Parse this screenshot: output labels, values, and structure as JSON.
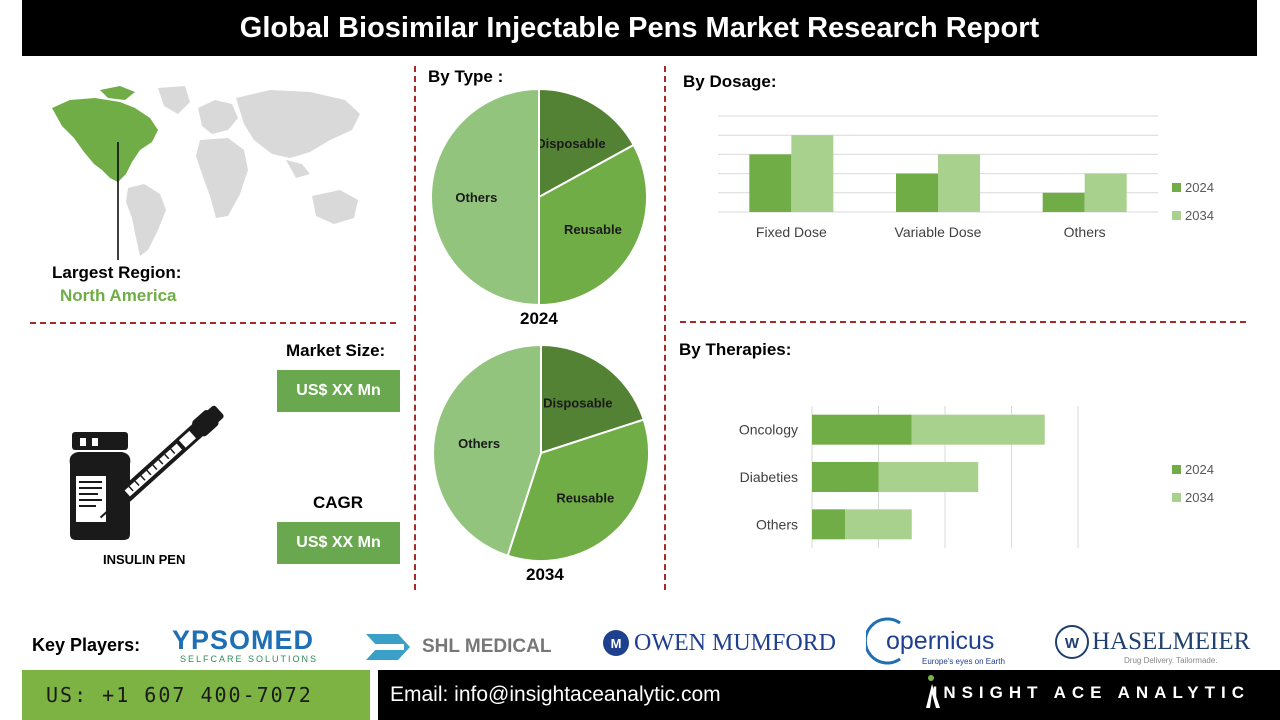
{
  "header": {
    "title": "Global Biosimilar Injectable Pens Market Research Report"
  },
  "region": {
    "label": "Largest Region:",
    "value": "North America"
  },
  "market_size": {
    "label": "Market Size:",
    "value": "US$ XX Mn"
  },
  "cagr": {
    "label": "CAGR",
    "value": "US$ XX Mn"
  },
  "product": {
    "label": "INSULIN PEN"
  },
  "sections": {
    "by_type": "By Type :",
    "by_dosage": "By Dosage:",
    "by_therapies": "By Therapies:"
  },
  "key_players": {
    "label": "Key Players:",
    "logos": [
      {
        "name": "YPSOMED",
        "tagline": "SELFCARE SOLUTIONS"
      },
      {
        "name": "SHL MEDICAL",
        "tagline": ""
      },
      {
        "name": "OWEN MUMFORD",
        "tagline": ""
      },
      {
        "name": "opernicus",
        "tagline": "Europe's eyes on Earth"
      },
      {
        "name": "HASELMEIER",
        "tagline": "Drug Delivery. Tailormade."
      }
    ]
  },
  "footer": {
    "phone": "US: +1 607 400-7072",
    "email": "Email: info@insightaceanalytic.com",
    "brand": "INSIGHT ACE ANALYTIC"
  },
  "colors": {
    "dark_green": "#548235",
    "mid_green": "#70ad47",
    "light_green": "#a9d18e",
    "pie_light": "#93c47d",
    "accent_red": "#a52a2a"
  },
  "chart_data": [
    {
      "type": "pie",
      "title": "2024",
      "slices": [
        {
          "label": "Disposable",
          "value": 17
        },
        {
          "label": "Reusable",
          "value": 33
        },
        {
          "label": "Others",
          "value": 50
        }
      ]
    },
    {
      "type": "pie",
      "title": "2034",
      "slices": [
        {
          "label": "Disposable",
          "value": 20
        },
        {
          "label": "Reusable",
          "value": 35
        },
        {
          "label": "Others",
          "value": 45
        }
      ]
    },
    {
      "type": "bar",
      "orientation": "vertical",
      "categories": [
        "Fixed Dose",
        "Variable Dose",
        "Others"
      ],
      "series": [
        {
          "name": "2024",
          "values": [
            3,
            2,
            1
          ]
        },
        {
          "name": "2034",
          "values": [
            4,
            3,
            2
          ]
        }
      ],
      "ylim": [
        0,
        5
      ],
      "grid": true,
      "legend": "right"
    },
    {
      "type": "bar",
      "orientation": "horizontal-stacked",
      "categories": [
        "Oncology",
        "Diabeties",
        "Others"
      ],
      "series": [
        {
          "name": "2024",
          "values": [
            3,
            2,
            1
          ]
        },
        {
          "name": "2034",
          "values": [
            4,
            3,
            2
          ]
        }
      ],
      "xlim": [
        0,
        8
      ],
      "grid": true,
      "legend": "right"
    }
  ]
}
